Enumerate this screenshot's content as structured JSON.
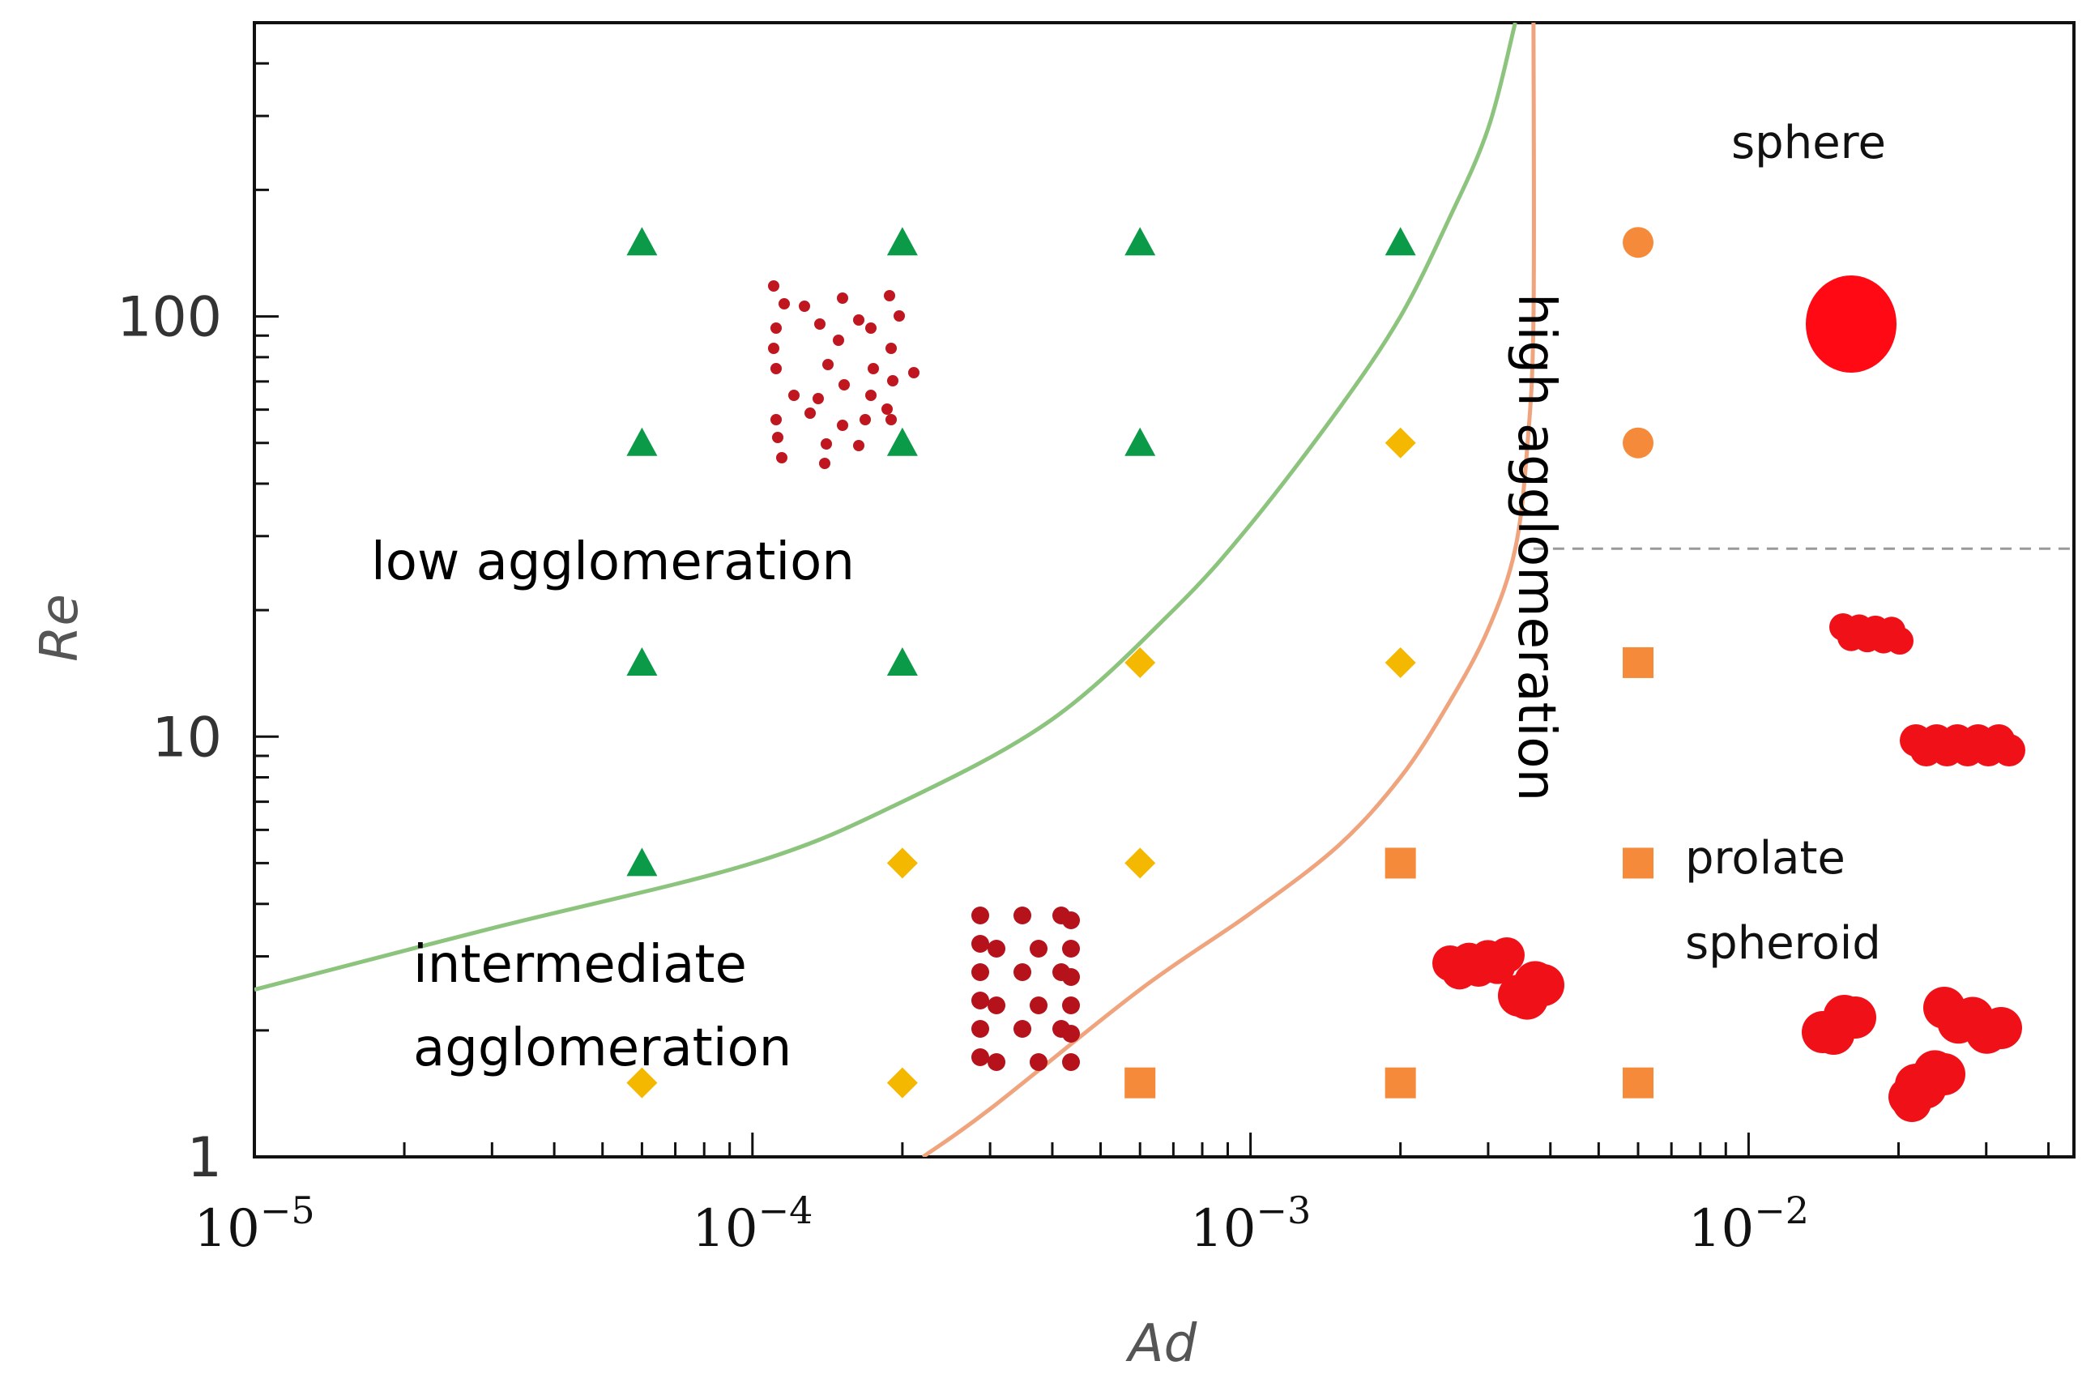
{
  "chart_data": {
    "type": "scatter",
    "title": "",
    "xlabel": "Ad",
    "ylabel": "Re",
    "xscale": "log",
    "yscale": "log",
    "xlim": [
      1e-05,
      0.045
    ],
    "ylim": [
      1,
      500
    ],
    "x_ticks": [
      {
        "value": 1e-05,
        "base": "10",
        "exp": "−5"
      },
      {
        "value": 0.0001,
        "base": "10",
        "exp": "−4"
      },
      {
        "value": 0.001,
        "base": "10",
        "exp": "−3"
      },
      {
        "value": 0.01,
        "base": "10",
        "exp": "−2"
      }
    ],
    "y_ticks": [
      {
        "value": 1,
        "label": "1"
      },
      {
        "value": 10,
        "label": "10"
      },
      {
        "value": 100,
        "label": "100"
      }
    ],
    "series": [
      {
        "name": "low agglomeration",
        "marker": "triangle",
        "color": "#0a9a48",
        "points": [
          {
            "x": 6e-05,
            "y": 150
          },
          {
            "x": 0.0002,
            "y": 150
          },
          {
            "x": 0.0006,
            "y": 150
          },
          {
            "x": 0.002,
            "y": 150
          },
          {
            "x": 6e-05,
            "y": 50
          },
          {
            "x": 0.0002,
            "y": 50
          },
          {
            "x": 0.0006,
            "y": 50
          },
          {
            "x": 6e-05,
            "y": 15
          },
          {
            "x": 0.0002,
            "y": 15
          },
          {
            "x": 6e-05,
            "y": 5
          }
        ]
      },
      {
        "name": "intermediate agglomeration",
        "marker": "diamond",
        "color": "#f5b800",
        "points": [
          {
            "x": 0.002,
            "y": 50
          },
          {
            "x": 0.0006,
            "y": 15
          },
          {
            "x": 0.002,
            "y": 15
          },
          {
            "x": 0.0002,
            "y": 5
          },
          {
            "x": 0.0006,
            "y": 5
          },
          {
            "x": 6e-05,
            "y": 1.5
          },
          {
            "x": 0.0002,
            "y": 1.5
          }
        ]
      },
      {
        "name": "high agglomeration (sphere)",
        "marker": "circle",
        "color": "#f58a3a",
        "points": [
          {
            "x": 0.006,
            "y": 150
          },
          {
            "x": 0.006,
            "y": 50
          }
        ]
      },
      {
        "name": "high agglomeration (prolate spheroid)",
        "marker": "square",
        "color": "#f58a3a",
        "points": [
          {
            "x": 0.006,
            "y": 15
          },
          {
            "x": 0.002,
            "y": 5
          },
          {
            "x": 0.006,
            "y": 5
          },
          {
            "x": 0.0006,
            "y": 1.5
          },
          {
            "x": 0.002,
            "y": 1.5
          },
          {
            "x": 0.006,
            "y": 1.5
          }
        ]
      }
    ],
    "boundaries": [
      {
        "name": "low-intermediate boundary",
        "color": "#8cc47e",
        "points": [
          {
            "x": 1e-05,
            "y": 2.5
          },
          {
            "x": 3e-05,
            "y": 3.5
          },
          {
            "x": 0.0001,
            "y": 5
          },
          {
            "x": 0.0002,
            "y": 7
          },
          {
            "x": 0.0004,
            "y": 11
          },
          {
            "x": 0.0007,
            "y": 20
          },
          {
            "x": 0.001,
            "y": 32
          },
          {
            "x": 0.0015,
            "y": 60
          },
          {
            "x": 0.002,
            "y": 100
          },
          {
            "x": 0.0025,
            "y": 170
          },
          {
            "x": 0.003,
            "y": 280
          },
          {
            "x": 0.0034,
            "y": 500
          }
        ]
      },
      {
        "name": "intermediate-high boundary",
        "color": "#f0a47e",
        "points": [
          {
            "x": 0.00022,
            "y": 1
          },
          {
            "x": 0.0003,
            "y": 1.3
          },
          {
            "x": 0.0006,
            "y": 2.5
          },
          {
            "x": 0.001,
            "y": 3.8
          },
          {
            "x": 0.0015,
            "y": 5.5
          },
          {
            "x": 0.002,
            "y": 8
          },
          {
            "x": 0.0025,
            "y": 12
          },
          {
            "x": 0.003,
            "y": 18
          },
          {
            "x": 0.0034,
            "y": 28
          },
          {
            "x": 0.0036,
            "y": 50
          },
          {
            "x": 0.0037,
            "y": 100
          },
          {
            "x": 0.0037,
            "y": 500
          }
        ]
      },
      {
        "name": "sphere / prolate spheroid divide",
        "color": "#9a9a9a",
        "dashed": true,
        "points": [
          {
            "x": 0.0037,
            "y": 28
          },
          {
            "x": 0.045,
            "y": 28
          }
        ]
      }
    ],
    "annotations": [
      {
        "text": "low agglomeration",
        "color": "#0a9a48"
      },
      {
        "text": "intermediate",
        "color": "#f5b800"
      },
      {
        "text": "agglomeration",
        "color": "#f5b800"
      },
      {
        "text": "high agglomeration",
        "color": "#d2752a"
      },
      {
        "text": "sphere",
        "color": "#111111"
      },
      {
        "text": "prolate",
        "color": "#111111"
      },
      {
        "text": "spheroid",
        "color": "#111111"
      }
    ],
    "grid": false,
    "legend": "none"
  }
}
